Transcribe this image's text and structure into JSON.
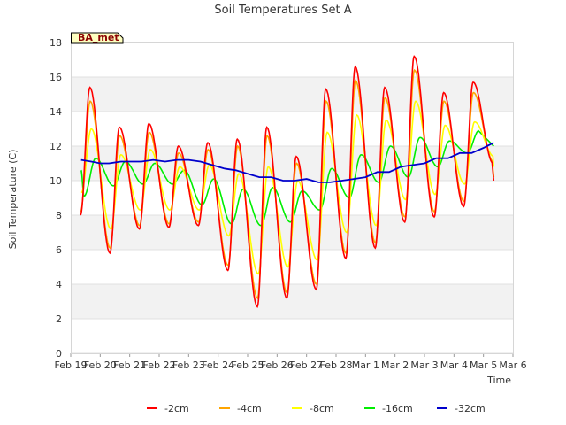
{
  "chart_data": {
    "type": "line",
    "title": "Soil Temperatures Set A",
    "xlabel": "Time",
    "ylabel": "Soil Temperature (C)",
    "badge": "BA_met",
    "ylim": [
      0,
      18
    ],
    "yticks": [
      0,
      2,
      4,
      6,
      8,
      10,
      12,
      14,
      16,
      18
    ],
    "x_ticks": [
      "Feb 19",
      "Feb 20",
      "Feb 21",
      "Feb 22",
      "Feb 23",
      "Feb 24",
      "Feb 25",
      "Feb 26",
      "Feb 27",
      "Feb 28",
      "Mar 1",
      "Mar 2",
      "Mar 3",
      "Mar 4",
      "Mar 5",
      "Mar 6"
    ],
    "xlim": [
      0,
      15
    ],
    "grid": true,
    "legend_position": "bottom",
    "colors": {
      "-2cm": "#ff0000",
      "-4cm": "#ffa500",
      "-8cm": "#ffff00",
      "-16cm": "#00ee00",
      "-32cm": "#0000cc"
    },
    "daily_min_max": [
      {
        "name": "-2cm",
        "lag": 0.55,
        "min": [
          8.0,
          5.8,
          7.2,
          7.3,
          7.4,
          4.8,
          2.7,
          3.2,
          3.7,
          5.5,
          6.1,
          7.6,
          7.9,
          8.5,
          11.0
        ],
        "max": [
          15.4,
          13.1,
          13.3,
          12.0,
          12.2,
          12.4,
          13.1,
          11.4,
          15.3,
          16.6,
          15.4,
          17.2,
          15.1,
          15.7
        ],
        "last_x": 14.35,
        "last_y": 10.0
      },
      {
        "name": "-4cm",
        "lag": 0.57,
        "min": [
          8.2,
          6.1,
          7.4,
          7.5,
          7.6,
          5.1,
          3.2,
          3.5,
          4.0,
          5.8,
          6.4,
          7.9,
          8.2,
          8.8,
          11.1
        ],
        "max": [
          14.6,
          12.6,
          12.8,
          11.6,
          11.8,
          12.0,
          12.6,
          11.0,
          14.6,
          15.8,
          14.8,
          16.4,
          14.6,
          15.1
        ],
        "last_x": 14.35,
        "last_y": 10.2
      },
      {
        "name": "-8cm",
        "lag": 0.65,
        "min": [
          9.3,
          7.2,
          8.3,
          8.3,
          8.3,
          6.8,
          4.6,
          5.0,
          5.4,
          7.0,
          7.4,
          8.9,
          9.2,
          9.8,
          11.4
        ],
        "max": [
          13.0,
          11.5,
          11.8,
          10.8,
          10.9,
          10.4,
          10.8,
          10.0,
          12.8,
          13.8,
          13.5,
          14.6,
          13.2,
          13.4
        ],
        "last_x": 14.35,
        "last_y": 10.8
      },
      {
        "name": "-16cm",
        "lag": 0.95,
        "min": [
          9.1,
          9.7,
          9.8,
          9.8,
          8.6,
          7.5,
          7.4,
          7.6,
          8.3,
          9.0,
          9.9,
          10.2,
          10.8,
          11.6
        ],
        "max": [
          11.3,
          11.1,
          11.0,
          10.6,
          10.1,
          9.5,
          9.6,
          9.4,
          10.7,
          11.5,
          12.0,
          12.5,
          12.3,
          12.9
        ],
        "first_x": 0.35,
        "first_y": 10.6,
        "last_x": 14.35,
        "last_y": 12.0
      }
    ],
    "series": [
      {
        "name": "-32cm",
        "x": [
          0.35,
          0.7,
          1.0,
          1.3,
          1.7,
          2.0,
          2.4,
          2.8,
          3.2,
          3.6,
          4.0,
          4.4,
          4.8,
          5.2,
          5.6,
          6.0,
          6.4,
          6.8,
          7.2,
          7.6,
          8.0,
          8.4,
          8.8,
          9.2,
          9.6,
          10.0,
          10.4,
          10.8,
          11.2,
          11.6,
          12.0,
          12.4,
          12.8,
          13.2,
          13.6,
          14.0,
          14.35
        ],
        "y": [
          11.2,
          11.1,
          11.0,
          11.0,
          11.1,
          11.1,
          11.1,
          11.2,
          11.1,
          11.2,
          11.2,
          11.1,
          10.9,
          10.7,
          10.6,
          10.4,
          10.2,
          10.2,
          10.0,
          10.0,
          10.1,
          9.9,
          9.9,
          10.0,
          10.1,
          10.2,
          10.5,
          10.5,
          10.8,
          10.9,
          11.0,
          11.3,
          11.3,
          11.6,
          11.6,
          11.9,
          12.2
        ]
      }
    ]
  }
}
